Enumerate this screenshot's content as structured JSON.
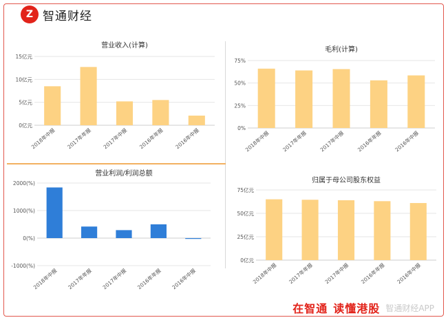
{
  "header": {
    "logo_mark": "Z",
    "logo_text": "智通财经"
  },
  "footer": {
    "slogan_a": "在智通",
    "slogan_b": "读懂港股",
    "watermark": "智通财经APP"
  },
  "colors": {
    "orange": "#fdd283",
    "blue": "#2f7ed8",
    "grid": "#e6e6e6",
    "axis": "#cccccc"
  },
  "chart_data": [
    {
      "id": "c1",
      "type": "bar",
      "title": "营业收入(计算)",
      "categories": [
        "2018年中报",
        "2017年年报",
        "2017年中报",
        "2016年年报",
        "2016年中报"
      ],
      "values": [
        8.5,
        12.7,
        5.2,
        5.5,
        2.1
      ],
      "ylim": [
        0,
        15
      ],
      "yticks": [
        0,
        5,
        10,
        15
      ],
      "ytick_labels": [
        "0亿元",
        "5亿元",
        "10亿元",
        "15亿元"
      ],
      "color": "#fdd283"
    },
    {
      "id": "c2",
      "type": "bar",
      "title": "毛利(计算)",
      "categories": [
        "2018年中报",
        "2017年年报",
        "2017年中报",
        "2016年年报",
        "2016年中报"
      ],
      "values": [
        66,
        64,
        65.5,
        53,
        58.5
      ],
      "ylim": [
        0,
        75
      ],
      "yticks": [
        0,
        25,
        50,
        75
      ],
      "ytick_labels": [
        "0%",
        "25%",
        "50%",
        "75%"
      ],
      "color": "#fdd283"
    },
    {
      "id": "c3",
      "type": "bar",
      "title": "营业利润/利润总额",
      "categories": [
        "2018年中报",
        "2017年年报",
        "2017年中报",
        "2016年年报",
        "2016年中报"
      ],
      "values": [
        1840,
        420,
        290,
        500,
        -30
      ],
      "ylim": [
        -1000,
        2000
      ],
      "yticks": [
        -1000,
        0,
        1000,
        2000
      ],
      "ytick_labels": [
        "-1000(%)",
        "0(%)",
        "1000(%)",
        "2000(%)"
      ],
      "color": "#2f7ed8"
    },
    {
      "id": "c4",
      "type": "bar",
      "title": "归属于母公司股东权益",
      "categories": [
        "2018年中报",
        "2017年年报",
        "2017年中报",
        "2016年年报",
        "2016年中报"
      ],
      "values": [
        65,
        64.5,
        64,
        63,
        61
      ],
      "ylim": [
        0,
        75
      ],
      "yticks": [
        0,
        25,
        50,
        75
      ],
      "ytick_labels": [
        "0亿元",
        "25亿元",
        "50亿元",
        "75亿元"
      ],
      "color": "#fdd283"
    }
  ]
}
